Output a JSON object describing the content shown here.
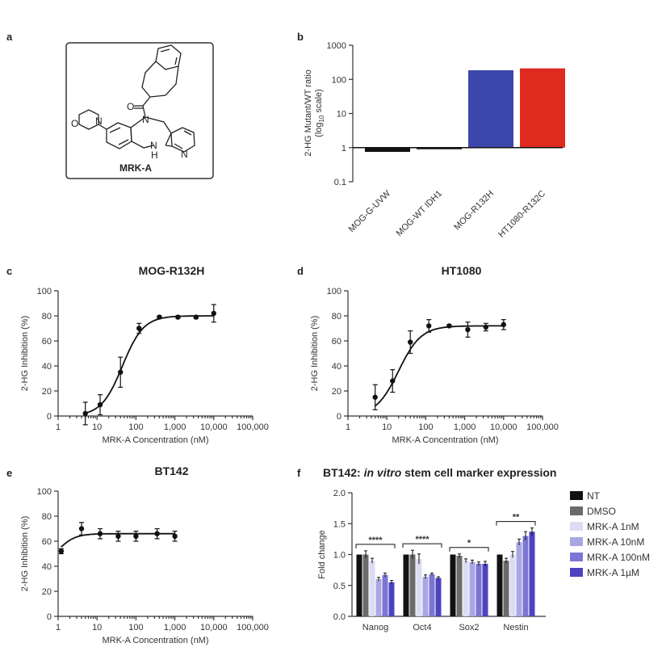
{
  "panel_labels": [
    "a",
    "b",
    "c",
    "d",
    "e",
    "f"
  ],
  "molecule": {
    "name": "MRK-A",
    "atoms": [
      "O",
      "N",
      "O",
      "N",
      "N",
      "H",
      "N"
    ]
  },
  "colors": {
    "black": "#111111",
    "blue": "#3b47ad",
    "red": "#df2a20",
    "dmso": "#6b6b6b",
    "shade1": "#dcdcf3",
    "shade2": "#a9a7e3",
    "shade3": "#7d75d3",
    "shade4": "#4c43c0"
  },
  "chart_data": [
    {
      "id": "b",
      "type": "bar",
      "yscale": "log",
      "ylabel_line1": "2-HG Mutant/WT ratio",
      "ylabel_line2_pre": "(log",
      "ylabel_line2_sub": "10",
      "ylabel_line2_post": " scale)",
      "ylim": [
        0.1,
        1000
      ],
      "yticks": [
        "0.1",
        "1",
        "10",
        "100",
        "1000"
      ],
      "categories": [
        "MOG-G-UVW",
        "MOG-WT IDH1",
        "MOG-R132H",
        "HT1080-R132C"
      ],
      "values": [
        0.75,
        1.0,
        185,
        210
      ],
      "bar_colors": [
        "#111111",
        "#111111",
        "#3b47ad",
        "#df2a20"
      ]
    },
    {
      "id": "c",
      "type": "scatter",
      "xscale": "log",
      "title": "MOG-R132H",
      "xlabel": "MRK-A Concentration (nM)",
      "ylabel": "2-HG Inhibition (%)",
      "xlim": [
        1,
        100000
      ],
      "ylim": [
        0,
        100
      ],
      "xticks": [
        "1",
        "10",
        "100",
        "1,000",
        "10,000",
        "100,000"
      ],
      "yticks": [
        "0",
        "20",
        "40",
        "60",
        "80",
        "100"
      ],
      "x": [
        5,
        12,
        40,
        120,
        400,
        1200,
        3500,
        10000
      ],
      "y": [
        2,
        9,
        35,
        70,
        79,
        79,
        79,
        82
      ],
      "err": [
        9,
        8,
        12,
        4,
        1,
        1,
        1,
        7
      ],
      "fit": {
        "bottom": 0,
        "top": 80,
        "ec50": 45,
        "hill": 1.6
      }
    },
    {
      "id": "d",
      "type": "scatter",
      "xscale": "log",
      "title": "HT1080",
      "xlabel": "MRK-A Concentration (nM)",
      "ylabel": "2-HG Inhibition (%)",
      "xlim": [
        1,
        100000
      ],
      "ylim": [
        0,
        100
      ],
      "xticks": [
        "1",
        "10",
        "100",
        "1,000",
        "10,000",
        "100,000"
      ],
      "yticks": [
        "0",
        "20",
        "40",
        "60",
        "80",
        "100"
      ],
      "x": [
        5,
        14,
        40,
        120,
        400,
        1200,
        3500,
        10000
      ],
      "y": [
        15,
        28,
        59,
        72,
        72,
        69,
        71,
        73
      ],
      "err": [
        10,
        9,
        9,
        5,
        1,
        6,
        3,
        4
      ],
      "fit": {
        "bottom": 0,
        "top": 72,
        "ec50": 20,
        "hill": 1.5
      }
    },
    {
      "id": "e",
      "type": "scatter",
      "xscale": "log",
      "title": "BT142",
      "xlabel": "MRK-A Concentration (nM)",
      "ylabel": "2-HG Inhibition (%)",
      "xlim": [
        1,
        100000
      ],
      "ylim": [
        0,
        100
      ],
      "xticks": [
        "1",
        "10",
        "100",
        "1,000",
        "10,000",
        "100,000"
      ],
      "yticks": [
        "0",
        "20",
        "40",
        "60",
        "80",
        "100"
      ],
      "x": [
        1.2,
        4,
        12,
        35,
        100,
        350,
        1000
      ],
      "y": [
        52,
        70,
        66,
        64,
        64,
        66,
        64
      ],
      "err": [
        2,
        5,
        4,
        4,
        4,
        4,
        4
      ],
      "fit": {
        "bottom": 40,
        "top": 66,
        "ec50": 1.0,
        "hill": 2.0
      }
    },
    {
      "id": "f",
      "type": "bar",
      "title_pre": "BT142: ",
      "title_italic": "in vitro",
      "title_post": " stem cell marker expression",
      "ylabel": "Fold change",
      "ylim": [
        0,
        2.0
      ],
      "yticks": [
        "0.0",
        "0.5",
        "1.0",
        "1.5",
        "2.0"
      ],
      "categories": [
        "Nanog",
        "Oct4",
        "Sox2",
        "Nestin"
      ],
      "series": [
        {
          "name": "NT",
          "color": "#111111",
          "values": [
            1.0,
            1.0,
            1.0,
            1.0
          ],
          "err": [
            0,
            0,
            0,
            0
          ]
        },
        {
          "name": "DMSO",
          "color": "#6b6b6b",
          "values": [
            1.0,
            1.0,
            0.98,
            0.9
          ],
          "err": [
            0.06,
            0.07,
            0.03,
            0.04
          ]
        },
        {
          "name": "MRK-A 1nM",
          "color": "#dcdcf3",
          "values": [
            0.9,
            0.93,
            0.9,
            1.0
          ],
          "err": [
            0.04,
            0.08,
            0.03,
            0.05
          ]
        },
        {
          "name": "MRK-A 10nM",
          "color": "#a9a7e3",
          "values": [
            0.6,
            0.64,
            0.88,
            1.2
          ],
          "err": [
            0.03,
            0.03,
            0.03,
            0.05
          ]
        },
        {
          "name": "MRK-A 100nM",
          "color": "#7d75d3",
          "values": [
            0.67,
            0.68,
            0.85,
            1.3
          ],
          "err": [
            0.03,
            0.02,
            0.03,
            0.07
          ]
        },
        {
          "name": "MRK-A 1µM",
          "color": "#4c43c0",
          "values": [
            0.55,
            0.62,
            0.85,
            1.37
          ],
          "err": [
            0.03,
            0.02,
            0.04,
            0.06
          ]
        }
      ],
      "significance": [
        "****",
        "****",
        "*",
        "**"
      ]
    }
  ]
}
